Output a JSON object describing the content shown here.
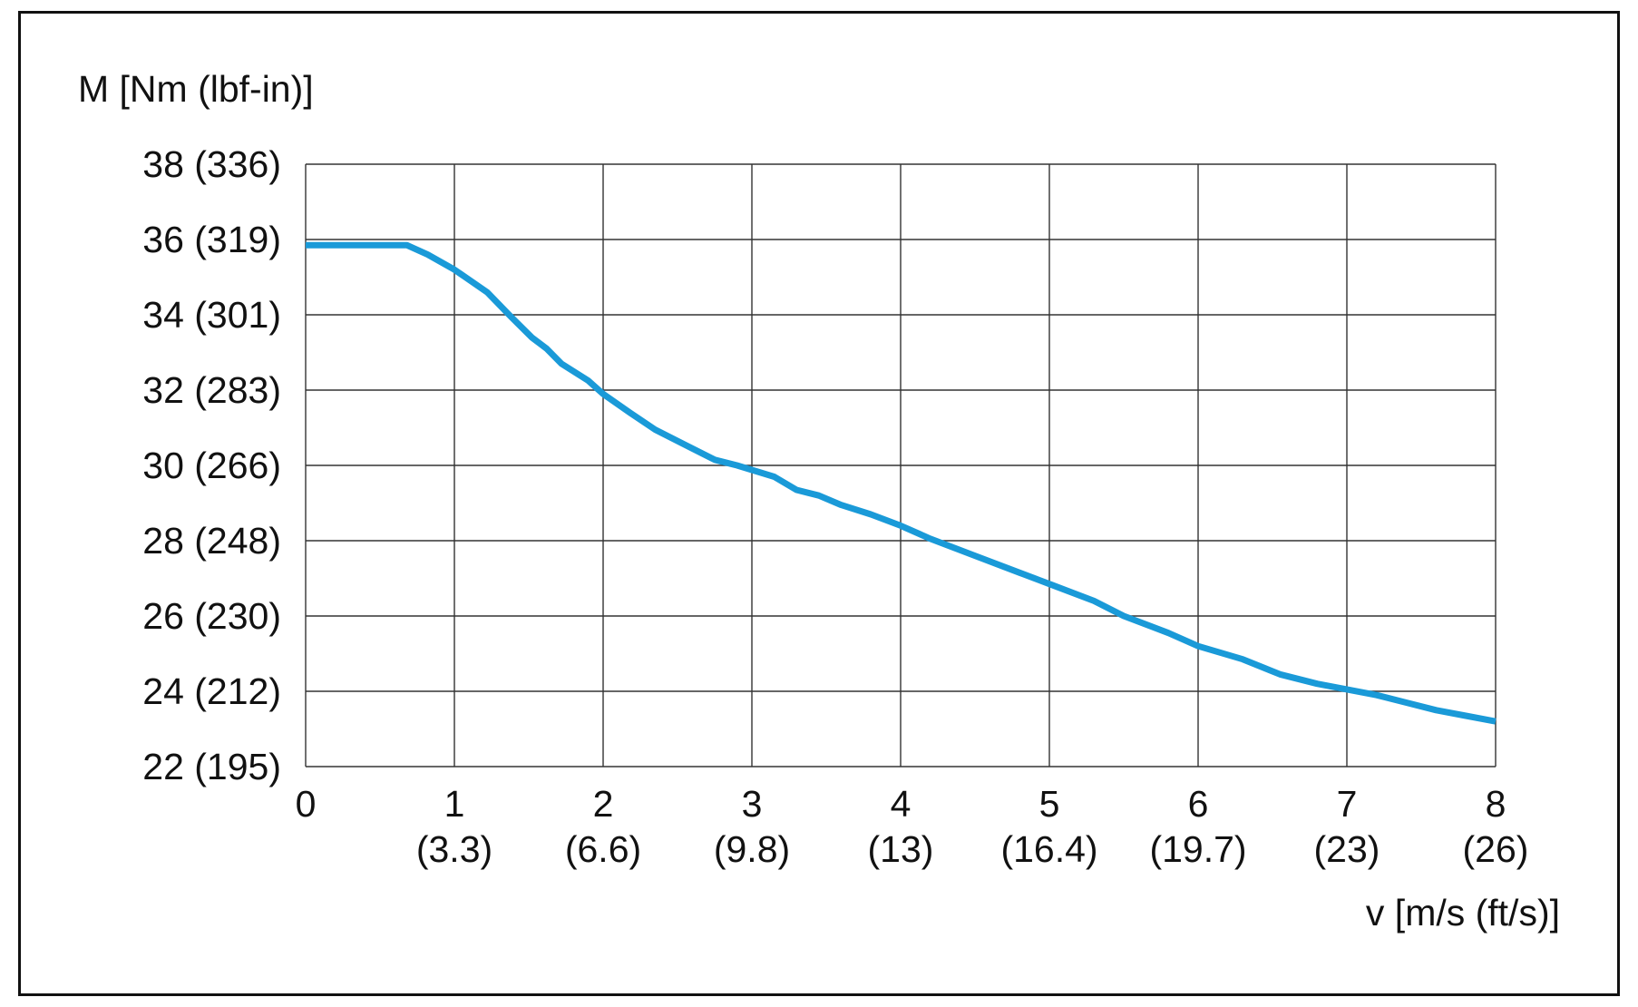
{
  "chart_data": {
    "type": "line",
    "title": "",
    "ylabel": "M [Nm (lbf-in)]",
    "xlabel": "v [m/s (ft/s)]",
    "xlim": [
      0,
      8
    ],
    "ylim": [
      22,
      38
    ],
    "grid": true,
    "line_color": "#1a9ad8",
    "y_ticks": [
      {
        "value": 22,
        "label": "22 (195)"
      },
      {
        "value": 24,
        "label": "24 (212)"
      },
      {
        "value": 26,
        "label": "26 (230)"
      },
      {
        "value": 28,
        "label": "28 (248)"
      },
      {
        "value": 30,
        "label": "30 (266)"
      },
      {
        "value": 32,
        "label": "32 (283)"
      },
      {
        "value": 34,
        "label": "34 (301)"
      },
      {
        "value": 36,
        "label": "36 (319)"
      },
      {
        "value": 38,
        "label": "38 (336)"
      }
    ],
    "x_ticks": [
      {
        "value": 0,
        "label": "0",
        "sublabel": ""
      },
      {
        "value": 1,
        "label": "1",
        "sublabel": "(3.3)"
      },
      {
        "value": 2,
        "label": "2",
        "sublabel": "(6.6)"
      },
      {
        "value": 3,
        "label": "3",
        "sublabel": "(9.8)"
      },
      {
        "value": 4,
        "label": "4",
        "sublabel": "(13)"
      },
      {
        "value": 5,
        "label": "5",
        "sublabel": "(16.4)"
      },
      {
        "value": 6,
        "label": "6",
        "sublabel": "(19.7)"
      },
      {
        "value": 7,
        "label": "7",
        "sublabel": "(23)"
      },
      {
        "value": 8,
        "label": "8",
        "sublabel": "(26)"
      }
    ],
    "series": [
      {
        "x": [
          0,
          0.2,
          0.4,
          0.68,
          0.82,
          1.0,
          1.22,
          1.38,
          1.52,
          1.62,
          1.72,
          1.9,
          2.0,
          2.18,
          2.35,
          2.55,
          2.75,
          2.9,
          3.15,
          3.3,
          3.45,
          3.6,
          3.8,
          4.0,
          4.2,
          4.5,
          4.8,
          5.0,
          5.3,
          5.5,
          5.8,
          6.0,
          6.3,
          6.55,
          6.8,
          7.0,
          7.2,
          7.4,
          7.6,
          7.8,
          8.0
        ],
        "y": [
          35.85,
          35.85,
          35.85,
          35.85,
          35.6,
          35.2,
          34.6,
          33.95,
          33.4,
          33.1,
          32.7,
          32.25,
          31.9,
          31.4,
          30.95,
          30.55,
          30.15,
          30.0,
          29.7,
          29.35,
          29.2,
          28.95,
          28.7,
          28.4,
          28.05,
          27.6,
          27.15,
          26.85,
          26.4,
          26.0,
          25.55,
          25.2,
          24.85,
          24.45,
          24.2,
          24.05,
          23.9,
          23.7,
          23.5,
          23.35,
          23.2
        ]
      }
    ]
  }
}
